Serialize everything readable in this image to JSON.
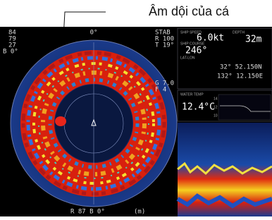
{
  "annotation": {
    "label": "Âm dội của cá"
  },
  "sonar": {
    "top_left": [
      "84",
      "79",
      "27",
      "B 0°"
    ],
    "top_center": "0°",
    "top_right": [
      "STAB",
      "R 100",
      "T 19°"
    ],
    "mid_right": [
      "G 7.0",
      "F 4"
    ],
    "bottom": "R  87 B  0°",
    "unit": "(m)"
  },
  "info": {
    "ship_speed_label": "SHIP SPEED",
    "ship_speed": "6.0kt",
    "depth_label": "DEPTH",
    "depth": "32m",
    "ship_course_label": "SHIP COURSE",
    "ship_course": "246°",
    "lat_lon_label": "LAT-LON",
    "lat": "32° 52.150N",
    "lon": "132° 12.150E",
    "water_temp_label": "WATER TEMP",
    "water_temp": "12.4°C",
    "graph_labels": [
      "14",
      "12",
      "10"
    ]
  }
}
